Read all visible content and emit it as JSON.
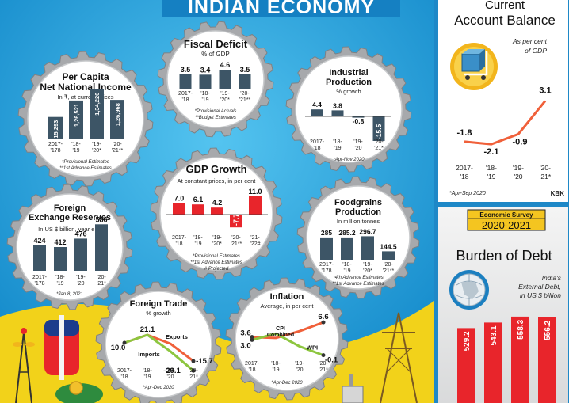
{
  "banner": {
    "title": "INDIAN ECONOMY"
  },
  "panels": {
    "fiscal": {
      "title": "Fiscal Deficit",
      "subtitle": "% of GDP",
      "categories": [
        "2017-'18",
        "'18-'19",
        "'19-'20*",
        "'20-'21**"
      ],
      "values": [
        3.5,
        3.4,
        4.6,
        3.5
      ],
      "value_labels": [
        "3.5",
        "3.4",
        "4.6",
        "3.5"
      ],
      "notes": [
        "*Provisional Actuals",
        "**Budget Estimates"
      ]
    },
    "per_capita": {
      "title1": "Per Capita",
      "title2": "Net National Income",
      "subtitle": "In ₹, at current prices",
      "categories": [
        "2017-'178",
        "'18-'19",
        "'19-'20*",
        "'20-'21**"
      ],
      "values": [
        115293,
        126521,
        134226,
        126968
      ],
      "value_labels": [
        "1,15,293",
        "1,26,521",
        "1,34,226",
        "1,26,968"
      ],
      "notes": [
        "*Provisional Estimates",
        "**1st Advance Estimates"
      ]
    },
    "industrial": {
      "title1": "Industrial",
      "title2": "Production",
      "subtitle": "% growth",
      "categories": [
        "2017-'18",
        "'18-'19",
        "'19-'20",
        "'20-'21*"
      ],
      "values": [
        4.4,
        3.8,
        -0.8,
        -15.5
      ],
      "value_labels": [
        "4.4",
        "3.8",
        "-0.8",
        "-15.5"
      ],
      "notes": [
        "*Apr-Nov 2020"
      ]
    },
    "gdp": {
      "title": "GDP Growth",
      "subtitle": "At constant prices, in per cent",
      "categories": [
        "2017-'18",
        "'18-'19",
        "'19-'20*",
        "'20-'21**",
        "'21-'22#"
      ],
      "values": [
        7.0,
        6.1,
        4.2,
        -7.7,
        11.0
      ],
      "value_labels": [
        "7.0",
        "6.1",
        "4.2",
        "-7.7",
        "11.0"
      ],
      "notes": [
        "*Provisional Estimates",
        "**1st Advance Estimates",
        "# Projected"
      ]
    },
    "forex": {
      "title1": "Foreign",
      "title2": "Exchange Reserves",
      "subtitle": "In US $ billion, year end",
      "categories": [
        "2017-'178",
        "'18-'19",
        "'19-'20",
        "'20-'21*"
      ],
      "values": [
        424,
        412,
        476,
        586
      ],
      "value_labels": [
        "424",
        "412",
        "476",
        "586"
      ],
      "notes": [
        "*Jan 8, 2021"
      ]
    },
    "foodgrains": {
      "title1": "Foodgrains",
      "title2": "Production",
      "subtitle": "In million tonnes",
      "categories": [
        "2017-'178",
        "'18-'19",
        "'19-'20*",
        "'20-'21**"
      ],
      "values": [
        285,
        285.2,
        296.7,
        144.5
      ],
      "value_labels": [
        "285",
        "285.2",
        "296.7",
        "144.5"
      ],
      "notes": [
        "*4th Advance Estimates",
        "**1st Advance Estimates"
      ]
    },
    "trade": {
      "title": "Foreign Trade",
      "subtitle": "% growth",
      "categories": [
        "2017-'18",
        "'18-'19",
        "'19-'20",
        "'20-'21*"
      ],
      "series": [
        {
          "name": "Exports",
          "values": [
            10.0,
            21.1,
            8.8,
            -15.7
          ],
          "color": "#f0603a"
        },
        {
          "name": "Imports",
          "values": [
            10.0,
            21.1,
            -2.0,
            -29.1
          ],
          "color": "#8dc63f"
        }
      ],
      "annotations": [
        "21.1",
        "10.0",
        "-15.7",
        "-29.1"
      ],
      "notes": [
        "*Apr-Dec 2020"
      ]
    },
    "inflation": {
      "title": "Inflation",
      "subtitle": "Average, in per cent",
      "categories": [
        "2017-'18",
        "'18-'19",
        "'19-'20",
        "'20-'21*"
      ],
      "series": [
        {
          "name": "CPI Combined",
          "values": [
            3.6,
            3.4,
            4.8,
            6.6
          ],
          "color": "#f0603a"
        },
        {
          "name": "WPI",
          "values": [
            3.0,
            4.3,
            1.7,
            -0.1
          ],
          "color": "#8dc63f"
        }
      ],
      "annotations": [
        "3.6",
        "3.0",
        "6.6",
        "-0.1"
      ],
      "notes": [
        "*Apr-Dec 2020"
      ]
    },
    "cab": {
      "title1": "Current",
      "title2": "Account Balance",
      "subtitle1": "As per cent",
      "subtitle2": "of GDP",
      "categories": [
        "2017-'18",
        "'18-'19",
        "'19-'20",
        "'20-'21*"
      ],
      "values": [
        -1.8,
        -2.1,
        -0.9,
        3.1
      ],
      "value_labels": [
        "-1.8",
        "-2.1",
        "-0.9",
        "3.1"
      ],
      "notes": [
        "*Apr-Sep 2020"
      ],
      "credit": "KBK",
      "line_color": "#f0603a"
    },
    "debt": {
      "badge1": "Economic Survey",
      "badge2": "2020-2021",
      "title": "Burden of Debt",
      "subtitle1": "India's",
      "subtitle2": "External Debt,",
      "subtitle3": "in US $ billion",
      "values": [
        529.2,
        543.1,
        558.3,
        556.2
      ],
      "value_labels": [
        "529.2",
        "543.1",
        "558.3",
        "556.2"
      ],
      "bar_color": "#e8252b"
    }
  },
  "colors": {
    "dark_bar": "#3d5566",
    "red_bar": "#e8252b",
    "gear": "#a7a9ac",
    "sky": "#1a9ad6"
  },
  "chart_data": [
    {
      "type": "bar",
      "title": "Fiscal Deficit",
      "ylabel": "% of GDP",
      "categories": [
        "2017-'18",
        "'18-'19",
        "'19-'20*",
        "'20-'21**"
      ],
      "values": [
        3.5,
        3.4,
        4.6,
        3.5
      ]
    },
    {
      "type": "bar",
      "title": "Per Capita Net National Income",
      "ylabel": "In ₹, at current prices",
      "categories": [
        "2017-'178",
        "'18-'19",
        "'19-'20*",
        "'20-'21**"
      ],
      "values": [
        115293,
        126521,
        134226,
        126968
      ]
    },
    {
      "type": "bar",
      "title": "Industrial Production",
      "ylabel": "% growth",
      "categories": [
        "2017-'18",
        "'18-'19",
        "'19-'20",
        "'20-'21*"
      ],
      "values": [
        4.4,
        3.8,
        -0.8,
        -15.5
      ]
    },
    {
      "type": "bar",
      "title": "GDP Growth",
      "ylabel": "At constant prices, in per cent",
      "categories": [
        "2017-'18",
        "'18-'19",
        "'19-'20*",
        "'20-'21**",
        "'21-'22#"
      ],
      "values": [
        7.0,
        6.1,
        4.2,
        -7.7,
        11.0
      ]
    },
    {
      "type": "bar",
      "title": "Foreign Exchange Reserves",
      "ylabel": "In US $ billion, year end",
      "categories": [
        "2017-'178",
        "'18-'19",
        "'19-'20",
        "'20-'21*"
      ],
      "values": [
        424,
        412,
        476,
        586
      ]
    },
    {
      "type": "bar",
      "title": "Foodgrains Production",
      "ylabel": "In million tonnes",
      "categories": [
        "2017-'178",
        "'18-'19",
        "'19-'20*",
        "'20-'21**"
      ],
      "values": [
        285,
        285.2,
        296.7,
        144.5
      ]
    },
    {
      "type": "line",
      "title": "Foreign Trade",
      "ylabel": "% growth",
      "categories": [
        "2017-'18",
        "'18-'19",
        "'19-'20",
        "'20-'21*"
      ],
      "series": [
        {
          "name": "Exports",
          "values": [
            10.0,
            21.1,
            8.8,
            -15.7
          ]
        },
        {
          "name": "Imports",
          "values": [
            10.0,
            21.1,
            -2.0,
            -29.1
          ]
        }
      ]
    },
    {
      "type": "line",
      "title": "Inflation",
      "ylabel": "Average, in per cent",
      "categories": [
        "2017-'18",
        "'18-'19",
        "'19-'20",
        "'20-'21*"
      ],
      "series": [
        {
          "name": "CPI Combined",
          "values": [
            3.6,
            3.4,
            4.8,
            6.6
          ]
        },
        {
          "name": "WPI",
          "values": [
            3.0,
            4.3,
            1.7,
            -0.1
          ]
        }
      ]
    },
    {
      "type": "line",
      "title": "Current Account Balance",
      "ylabel": "As per cent of GDP",
      "categories": [
        "2017-'18",
        "'18-'19",
        "'19-'20",
        "'20-'21*"
      ],
      "values": [
        -1.8,
        -2.1,
        -0.9,
        3.1
      ]
    },
    {
      "type": "bar",
      "title": "Burden of Debt",
      "ylabel": "India's External Debt, in US $ billion",
      "values": [
        529.2,
        543.1,
        558.3,
        556.2
      ]
    }
  ]
}
